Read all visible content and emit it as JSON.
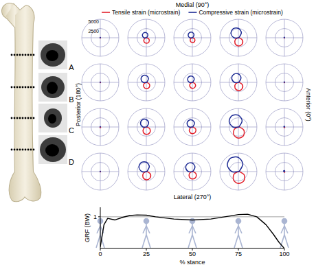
{
  "chart_data": [
    {
      "type": "polar",
      "rows": [
        "A",
        "B",
        "C",
        "D"
      ],
      "angles": [
        0,
        30,
        60,
        90,
        120,
        150,
        180,
        210,
        240,
        270,
        300,
        330
      ],
      "rlim": [
        0,
        5000
      ],
      "rticks": [
        2500,
        5000
      ],
      "directions": [
        {
          "value": 90,
          "label": "Medial (90°)"
        },
        {
          "value": 180,
          "label": "Posterior (180°)"
        },
        {
          "value": 0,
          "label": "Anterior (0°)"
        },
        {
          "value": 270,
          "label": "Lateral (270°)"
        }
      ],
      "legend": "top",
      "series": [
        {
          "name": "Tensile strain (microstrain)",
          "color": "#e3202b",
          "values": [
            [
              [
                10,
                0,
                0,
                0,
                0,
                0,
                0,
                40,
                80,
                100,
                90,
                60
              ],
              [
                140,
                0,
                0,
                0,
                0,
                0,
                0,
                630,
                1230,
                1500,
                1370,
                860
              ],
              [
                120,
                0,
                0,
                0,
                0,
                0,
                0,
                550,
                1070,
                1300,
                1180,
                740
              ],
              [
                200,
                0,
                0,
                0,
                0,
                0,
                0,
                920,
                1800,
                2200,
                2000,
                1250
              ],
              [
                10,
                0,
                0,
                0,
                0,
                0,
                0,
                40,
                80,
                100,
                90,
                60
              ]
            ],
            [
              [
                10,
                0,
                0,
                0,
                0,
                0,
                0,
                40,
                80,
                100,
                90,
                60
              ],
              [
                150,
                0,
                0,
                0,
                0,
                0,
                0,
                710,
                1390,
                1700,
                1550,
                970
              ],
              [
                140,
                0,
                0,
                0,
                0,
                0,
                0,
                670,
                1310,
                1600,
                1460,
                910
              ],
              [
                200,
                0,
                0,
                0,
                0,
                0,
                0,
                920,
                1800,
                2200,
                2000,
                1250
              ],
              [
                10,
                0,
                0,
                0,
                0,
                0,
                0,
                40,
                80,
                100,
                90,
                60
              ]
            ],
            [
              [
                20,
                0,
                0,
                0,
                0,
                0,
                0,
                80,
                160,
                200,
                180,
                110
              ],
              [
                180,
                0,
                0,
                0,
                0,
                0,
                0,
                840,
                1640,
                2000,
                1820,
                1140
              ],
              [
                160,
                0,
                0,
                0,
                0,
                0,
                0,
                760,
                1480,
                1800,
                1640,
                1030
              ],
              [
                270,
                0,
                0,
                0,
                0,
                0,
                0,
                1260,
                2460,
                3000,
                2730,
                1710
              ],
              [
                20,
                0,
                0,
                0,
                0,
                0,
                0,
                80,
                160,
                200,
                180,
                110
              ]
            ],
            [
              [
                10,
                0,
                0,
                0,
                0,
                0,
                0,
                40,
                80,
                100,
                90,
                60
              ],
              [
                200,
                0,
                0,
                0,
                0,
                0,
                0,
                920,
                1800,
                2200,
                2000,
                1250
              ],
              [
                180,
                0,
                0,
                0,
                0,
                0,
                0,
                840,
                1640,
                2000,
                1820,
                1140
              ],
              [
                290,
                0,
                0,
                0,
                0,
                0,
                0,
                1340,
                2620,
                3200,
                2910,
                1820
              ],
              [
                20,
                0,
                0,
                0,
                0,
                0,
                0,
                80,
                160,
                200,
                180,
                110
              ]
            ]
          ]
        },
        {
          "name": "Compressive strain (microstrain)",
          "color": "#1c2a94",
          "values": [
            [
              [
                0,
                10,
                60,
                90,
                100,
                80,
                40,
                0,
                0,
                0,
                0,
                0
              ],
              [
                0,
                140,
                860,
                1370,
                1500,
                1230,
                630,
                0,
                0,
                0,
                0,
                0
              ],
              [
                0,
                140,
                910,
                1460,
                1600,
                1310,
                670,
                0,
                0,
                0,
                0,
                0
              ],
              [
                0,
                250,
                1600,
                2550,
                2800,
                2300,
                1180,
                0,
                0,
                0,
                0,
                0
              ],
              [
                0,
                10,
                90,
                140,
                150,
                120,
                60,
                0,
                0,
                0,
                0,
                0
              ]
            ],
            [
              [
                0,
                10,
                60,
                90,
                100,
                80,
                40,
                0,
                0,
                0,
                0,
                0
              ],
              [
                0,
                180,
                1140,
                1820,
                2000,
                1640,
                840,
                0,
                0,
                0,
                0,
                0
              ],
              [
                0,
                160,
                1030,
                1640,
                1800,
                1480,
                760,
                0,
                0,
                0,
                0,
                0
              ],
              [
                0,
                220,
                1430,
                2270,
                2500,
                2050,
                1050,
                0,
                0,
                0,
                0,
                0
              ],
              [
                0,
                10,
                90,
                140,
                150,
                120,
                60,
                0,
                0,
                0,
                0,
                0
              ]
            ],
            [
              [
                0,
                10,
                60,
                90,
                100,
                80,
                40,
                0,
                0,
                0,
                0,
                0
              ],
              [
                0,
                200,
                1250,
                2000,
                2200,
                1800,
                920,
                0,
                0,
                0,
                0,
                0
              ],
              [
                0,
                180,
                1140,
                1820,
                2000,
                1640,
                840,
                0,
                0,
                0,
                0,
                0
              ],
              [
                0,
                310,
                2000,
                3180,
                3500,
                2870,
                1470,
                0,
                0,
                0,
                0,
                0
              ],
              [
                0,
                20,
                110,
                180,
                200,
                160,
                80,
                0,
                0,
                0,
                0,
                0
              ]
            ],
            [
              [
                0,
                10,
                60,
                90,
                100,
                80,
                40,
                0,
                0,
                0,
                0,
                0
              ],
              [
                0,
                250,
                1600,
                2550,
                2800,
                2300,
                1180,
                0,
                0,
                0,
                0,
                0
              ],
              [
                0,
                220,
                1430,
                2270,
                2500,
                2050,
                1050,
                0,
                0,
                0,
                0,
                0
              ],
              [
                0,
                370,
                2400,
                3820,
                4200,
                3440,
                1760,
                0,
                0,
                0,
                0,
                0
              ],
              [
                0,
                30,
                170,
                270,
                300,
                250,
                130,
                0,
                0,
                0,
                0,
                0
              ]
            ]
          ]
        }
      ]
    },
    {
      "type": "line",
      "xlabel": "% stance",
      "ylabel": "GRF (BW)",
      "x": [
        0,
        2,
        4,
        8,
        12,
        16,
        20,
        25,
        30,
        40,
        50,
        60,
        70,
        75,
        80,
        85,
        90,
        94,
        97,
        100
      ],
      "values": [
        0.05,
        0.75,
        0.95,
        0.9,
        0.98,
        1.04,
        1.06,
        1.05,
        1.0,
        0.93,
        0.9,
        0.93,
        1.02,
        1.07,
        1.08,
        1.0,
        0.75,
        0.45,
        0.2,
        0.0
      ],
      "color": "#000000",
      "xlim": [
        0,
        100
      ],
      "ylim": [
        0,
        1.3
      ],
      "xticks": [
        0,
        25,
        50,
        75,
        100
      ],
      "yticks": [
        1
      ],
      "grid": true
    }
  ]
}
